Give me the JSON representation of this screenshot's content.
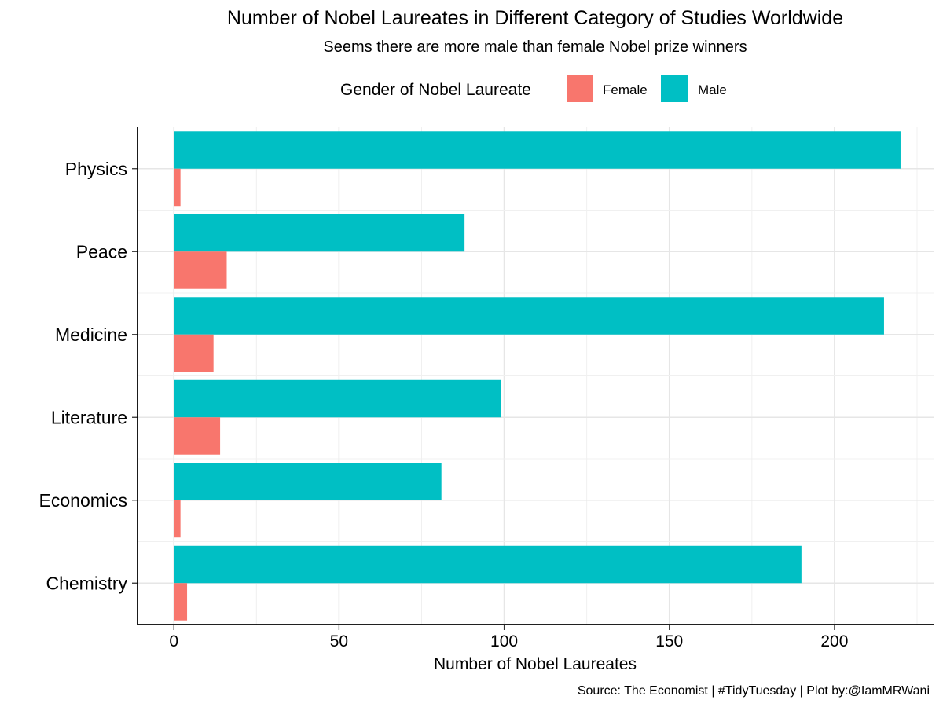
{
  "chart_data": {
    "type": "bar",
    "orientation": "horizontal",
    "title": "Number of Nobel Laureates in Different Category of Studies Worldwide",
    "subtitle": "Seems there are more male than female Nobel prize winners",
    "xlabel": "Number of Nobel Laureates",
    "ylabel": "",
    "caption": "Source: The Economist | #TidyTuesday | Plot by:@IamMRWani",
    "legend_title": "Gender of Nobel Laureate",
    "legend_position": "top",
    "categories": [
      "Physics",
      "Peace",
      "Medicine",
      "Literature",
      "Economics",
      "Chemistry"
    ],
    "series": [
      {
        "name": "Female",
        "color": "#F8766D",
        "values": [
          2,
          16,
          12,
          14,
          2,
          4
        ]
      },
      {
        "name": "Male",
        "color": "#00BFC4",
        "values": [
          220,
          88,
          215,
          99,
          81,
          190
        ]
      }
    ],
    "xlim": [
      -11,
      230
    ],
    "x_ticks": [
      "0",
      "50",
      "100",
      "150",
      "200"
    ],
    "grid": true
  }
}
